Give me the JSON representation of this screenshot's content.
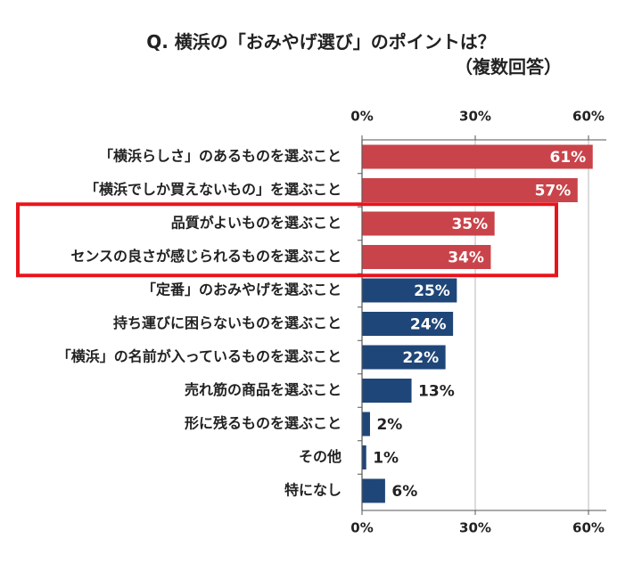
{
  "chart_data": {
    "type": "bar",
    "orientation": "horizontal",
    "title_line1": "Q. 横浜の「おみやげ選び」のポイントは？",
    "title_line2": "（複数回答）",
    "categories": [
      "「横浜らしさ」のあるものを選ぶこと",
      "「横浜でしか買えないもの」を選ぶこと",
      "品質がよいものを選ぶこと",
      "センスの良さが感じられるものを選ぶこと",
      "「定番」のおみやげを選ぶこと",
      "持ち運びに困らないものを選ぶこと",
      "「横浜」の名前が入っているものを選ぶこと",
      "売れ筋の商品を選ぶこと",
      "形に残るものを選ぶこと",
      "その他",
      "特になし"
    ],
    "values": [
      61,
      57,
      35,
      34,
      25,
      24,
      22,
      13,
      2,
      1,
      6
    ],
    "value_labels": [
      "61%",
      "57%",
      "35%",
      "34%",
      "25%",
      "24%",
      "22%",
      "13%",
      "2%",
      "1%",
      "6%"
    ],
    "bar_colors": [
      "#c9444a",
      "#c9444a",
      "#c9444a",
      "#c9444a",
      "#1f4678",
      "#1f4678",
      "#1f4678",
      "#1f4678",
      "#1f4678",
      "#1f4678",
      "#1f4678"
    ],
    "label_inside": [
      true,
      true,
      true,
      true,
      true,
      true,
      true,
      false,
      false,
      false,
      false
    ],
    "highlighted_indices": [
      2,
      3
    ],
    "highlight_color": "#e8141c",
    "x_ticks": [
      0,
      30,
      60
    ],
    "x_tick_labels": [
      "0%",
      "30%",
      "60%"
    ],
    "xlim": [
      0,
      65
    ],
    "gridlines": true
  }
}
